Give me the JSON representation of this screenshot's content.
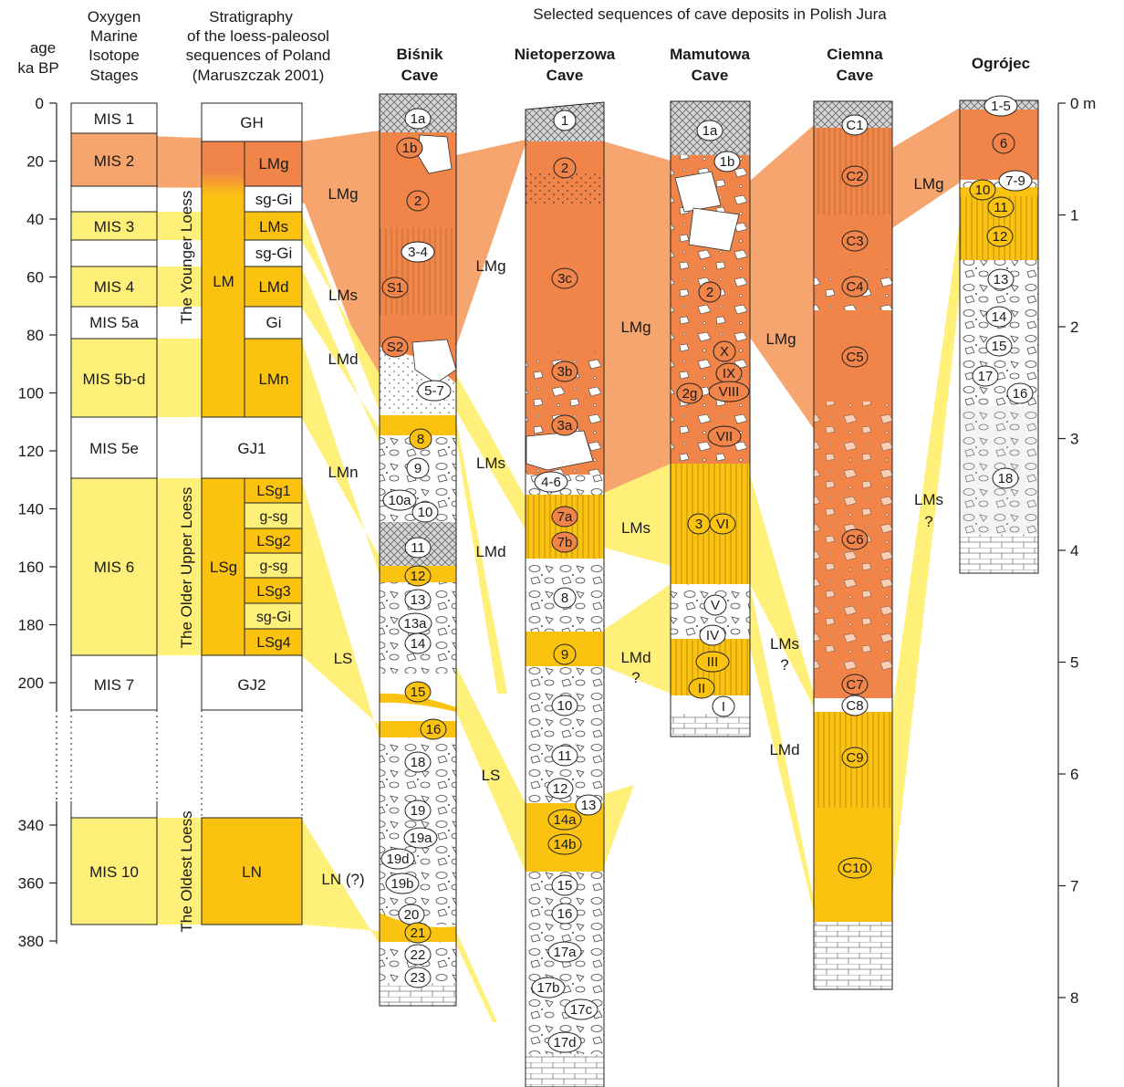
{
  "top_title": "Selected sequences of cave deposits in Polish Jura",
  "axis_left": {
    "title_line1": "age",
    "title_line2": "ka BP",
    "ticks": [
      {
        "value": 0,
        "label": "0"
      },
      {
        "value": 20,
        "label": "20"
      },
      {
        "value": 40,
        "label": "40"
      },
      {
        "value": 60,
        "label": "60"
      },
      {
        "value": 80,
        "label": "80"
      },
      {
        "value": 100,
        "label": "100"
      },
      {
        "value": 120,
        "label": "120"
      },
      {
        "value": 140,
        "label": "140"
      },
      {
        "value": 160,
        "label": "160"
      },
      {
        "value": 180,
        "label": "180"
      },
      {
        "value": 200,
        "label": "200"
      },
      {
        "value": 340,
        "label": "340"
      },
      {
        "value": 360,
        "label": "360"
      },
      {
        "value": 380,
        "label": "380"
      }
    ]
  },
  "axis_right": {
    "ticks": [
      {
        "value": 0,
        "label": "0 m"
      },
      {
        "value": 1,
        "label": "1"
      },
      {
        "value": 2,
        "label": "2"
      },
      {
        "value": 3,
        "label": "3"
      },
      {
        "value": 4,
        "label": "4"
      },
      {
        "value": 5,
        "label": "5"
      },
      {
        "value": 6,
        "label": "6"
      },
      {
        "value": 7,
        "label": "7"
      },
      {
        "value": 8,
        "label": "8"
      }
    ]
  },
  "mis_header": [
    "Oxygen",
    "Marine",
    "Isotope",
    "Stages"
  ],
  "strat_header": [
    "Stratigraphy",
    "of the loess-paleosol",
    "sequences of Poland",
    "(Maruszczak 2001)"
  ],
  "mis_stages": [
    {
      "label": "MIS 1",
      "fill": "#ffffff"
    },
    {
      "label": "MIS 2",
      "fill": "#f6a56e"
    },
    {
      "label": "MIS 3",
      "fill": "#fff07a"
    },
    {
      "label": "MIS 4",
      "fill": "#fff07a"
    },
    {
      "label": "MIS 5a",
      "fill": "#ffffff"
    },
    {
      "label": "MIS 5b-d",
      "fill": "#fff07a"
    },
    {
      "label": "MIS 5e",
      "fill": "#ffffff"
    },
    {
      "label": "MIS 6",
      "fill": "#fff07a"
    },
    {
      "label": "MIS 7",
      "fill": "#ffffff"
    },
    {
      "label": "MIS 10",
      "fill": "#fff07a"
    }
  ],
  "loess_groups": [
    "The Younger Loess",
    "The Older Upper Loess",
    "The Oldest Loess"
  ],
  "strat_units": {
    "GH": "GH",
    "LMg": "LMg",
    "sg_Gi_1": "sg-Gi",
    "LM": "LM",
    "LMs": "LMs",
    "sg_Gi_2": "sg-Gi",
    "LMd": "LMd",
    "Gi": "Gi",
    "LMn": "LMn",
    "GJ1": "GJ1",
    "LSg": "LSg",
    "LSg1": "LSg1",
    "g_sg_1": "g-sg",
    "LSg2": "LSg2",
    "g_sg_2": "g-sg",
    "LSg3": "LSg3",
    "sg_Gi_3": "sg-Gi",
    "LSg4": "LSg4",
    "GJ2": "GJ2",
    "LN": "LN"
  },
  "correlation_labels": [
    "LMg",
    "LMs",
    "LMd",
    "LMn",
    "LS",
    "LN (?)",
    "LMg",
    "LMs",
    "LMd",
    "LS",
    "LMg",
    "LMs",
    "LMd",
    "?",
    "LMg",
    "LMs",
    "?",
    "LMd",
    "LMg",
    "LMs",
    "?"
  ],
  "caves": [
    {
      "line1": "Biśnik",
      "line2": "Cave"
    },
    {
      "line1": "Nietoperzowa",
      "line2": "Cave"
    },
    {
      "line1": "Mamutowa",
      "line2": "Cave"
    },
    {
      "line1": "Ciemna",
      "line2": "Cave"
    },
    {
      "line1": "Ogrójec",
      "line2": ""
    }
  ],
  "layers": {
    "bisnik": [
      "1a",
      "1b",
      "2",
      "3-4",
      "S1",
      "S2",
      "5-7",
      "8",
      "9",
      "10a",
      "10",
      "11",
      "12",
      "13",
      "13a",
      "14",
      "15",
      "16",
      "18",
      "19",
      "19a",
      "19d",
      "19b",
      "20",
      "21",
      "22",
      "23"
    ],
    "nietoperzowa": [
      "1",
      "2",
      "3c",
      "3b",
      "3a",
      "4-6",
      "7a",
      "7b",
      "8",
      "9",
      "10",
      "11",
      "12",
      "13",
      "14a",
      "14b",
      "15",
      "16",
      "17a",
      "17b",
      "17c",
      "17d"
    ],
    "mamutowa": [
      "1a",
      "1b",
      "2",
      "X",
      "IX",
      "VIII",
      "2g",
      "VII",
      "3",
      "VI",
      "V",
      "IV",
      "III",
      "II",
      "I"
    ],
    "ciemna": [
      "C1",
      "C2",
      "C3",
      "C4",
      "C5",
      "C6",
      "C7",
      "C8",
      "C9",
      "C10"
    ],
    "ogrojec": [
      "1-5",
      "6",
      "7-9",
      "10",
      "11",
      "12",
      "13",
      "14",
      "15",
      "17",
      "16",
      "18"
    ]
  },
  "colors": {
    "orange_dark": "#f08449",
    "orange_light": "#f6a56e",
    "gold": "#fbc20f",
    "yellow_pale": "#fff07a",
    "rubble_gray": "#c9c9c9"
  }
}
